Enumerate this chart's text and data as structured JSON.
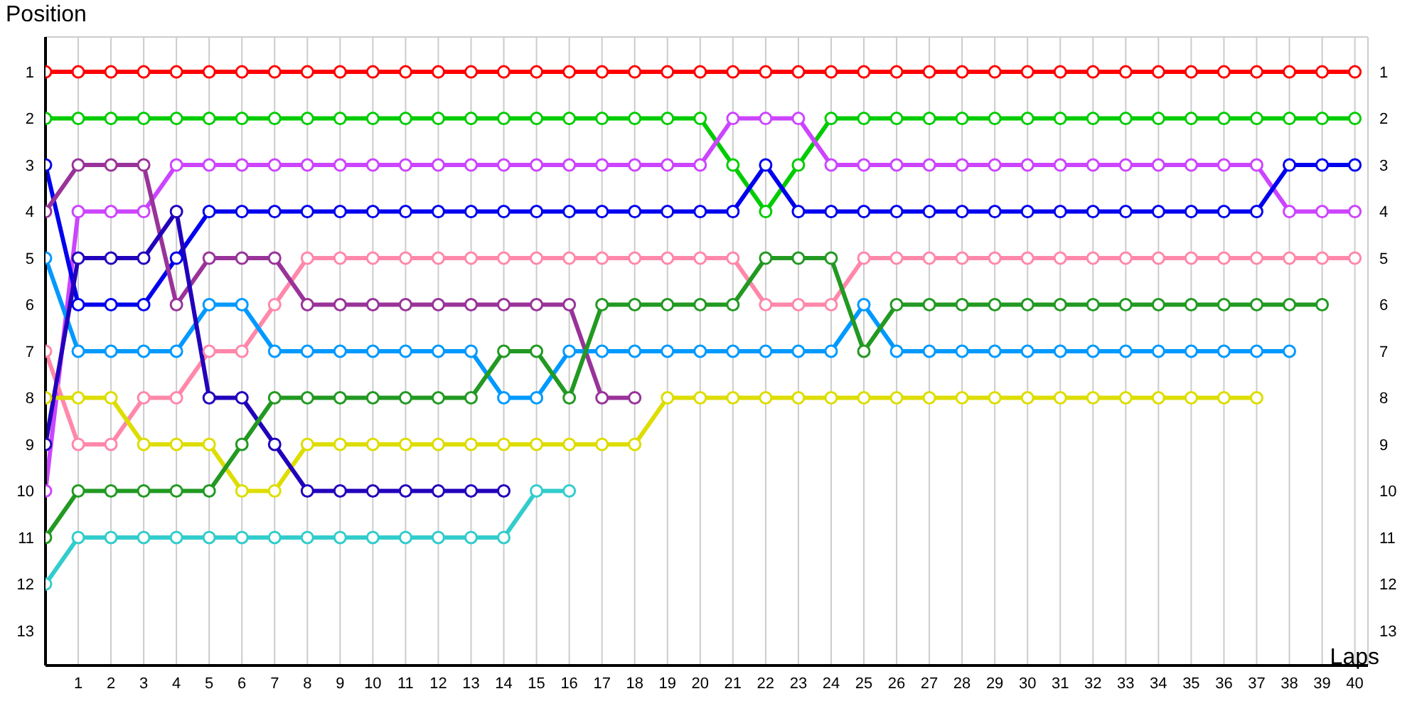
{
  "chart_data": {
    "type": "line",
    "xlabel": "Laps",
    "ylabel": "Position",
    "x": [
      0,
      1,
      2,
      3,
      4,
      5,
      6,
      7,
      8,
      9,
      10,
      11,
      12,
      13,
      14,
      15,
      16,
      17,
      18,
      19,
      20,
      21,
      22,
      23,
      24,
      25,
      26,
      27,
      28,
      29,
      30,
      31,
      32,
      33,
      34,
      35,
      36,
      37,
      38,
      39,
      40
    ],
    "xlim": [
      0,
      40.4
    ],
    "xticks": [
      1,
      2,
      3,
      4,
      5,
      6,
      7,
      8,
      9,
      10,
      11,
      12,
      13,
      14,
      15,
      16,
      17,
      18,
      19,
      20,
      21,
      22,
      23,
      24,
      25,
      26,
      27,
      28,
      29,
      30,
      31,
      32,
      33,
      34,
      35,
      36,
      37,
      38,
      39,
      40
    ],
    "ylim": [
      13.75,
      0.25
    ],
    "yticks": [
      1,
      2,
      3,
      4,
      5,
      6,
      7,
      8,
      9,
      10,
      11,
      12,
      13
    ],
    "y2lim": [
      13.75,
      0.25
    ],
    "y2ticks": [
      1,
      2,
      3,
      4,
      5,
      6,
      7,
      8,
      9,
      10,
      11,
      12,
      13
    ],
    "grid": true,
    "marker": "circle",
    "series": [
      {
        "color": "#ff0000",
        "values": [
          1,
          1,
          1,
          1,
          1,
          1,
          1,
          1,
          1,
          1,
          1,
          1,
          1,
          1,
          1,
          1,
          1,
          1,
          1,
          1,
          1,
          1,
          1,
          1,
          1,
          1,
          1,
          1,
          1,
          1,
          1,
          1,
          1,
          1,
          1,
          1,
          1,
          1,
          1,
          1,
          1
        ]
      },
      {
        "color": "#00cc00",
        "values": [
          2,
          2,
          2,
          2,
          2,
          2,
          2,
          2,
          2,
          2,
          2,
          2,
          2,
          2,
          2,
          2,
          2,
          2,
          2,
          2,
          2,
          3,
          4,
          3,
          2,
          2,
          2,
          2,
          2,
          2,
          2,
          2,
          2,
          2,
          2,
          2,
          2,
          2,
          2,
          2,
          2
        ]
      },
      {
        "color": "#cc44ff",
        "values": [
          10,
          4,
          4,
          4,
          3,
          3,
          3,
          3,
          3,
          3,
          3,
          3,
          3,
          3,
          3,
          3,
          3,
          3,
          3,
          3,
          3,
          2,
          2,
          2,
          3,
          3,
          3,
          3,
          3,
          3,
          3,
          3,
          3,
          3,
          3,
          3,
          3,
          3,
          4,
          4,
          4
        ]
      },
      {
        "color": "#0000ee",
        "values": [
          3,
          6,
          6,
          6,
          5,
          4,
          4,
          4,
          4,
          4,
          4,
          4,
          4,
          4,
          4,
          4,
          4,
          4,
          4,
          4,
          4,
          4,
          3,
          4,
          4,
          4,
          4,
          4,
          4,
          4,
          4,
          4,
          4,
          4,
          4,
          4,
          4,
          4,
          3,
          3,
          3
        ]
      },
      {
        "color": "#ff88aa",
        "values": [
          7,
          9,
          9,
          8,
          8,
          7,
          7,
          6,
          5,
          5,
          5,
          5,
          5,
          5,
          5,
          5,
          5,
          5,
          5,
          5,
          5,
          5,
          6,
          6,
          6,
          5,
          5,
          5,
          5,
          5,
          5,
          5,
          5,
          5,
          5,
          5,
          5,
          5,
          5,
          5,
          5
        ]
      },
      {
        "color": "#993399",
        "values": [
          4,
          3,
          3,
          3,
          6,
          5,
          5,
          5,
          6,
          6,
          6,
          6,
          6,
          6,
          6,
          6,
          6,
          8,
          8,
          null,
          null,
          null,
          null,
          null,
          null,
          null,
          null,
          null,
          null,
          null,
          null,
          null,
          null,
          null,
          null,
          null,
          null,
          null,
          null,
          null,
          null
        ]
      },
      {
        "color": "#0099ff",
        "values": [
          5,
          7,
          7,
          7,
          7,
          6,
          6,
          7,
          7,
          7,
          7,
          7,
          7,
          7,
          8,
          8,
          7,
          7,
          7,
          7,
          7,
          7,
          7,
          7,
          7,
          6,
          7,
          7,
          7,
          7,
          7,
          7,
          7,
          7,
          7,
          7,
          7,
          7,
          7,
          null,
          null
        ]
      },
      {
        "color": "#dddd00",
        "values": [
          8,
          8,
          8,
          9,
          9,
          9,
          10,
          10,
          9,
          9,
          9,
          9,
          9,
          9,
          9,
          9,
          9,
          9,
          9,
          8,
          8,
          8,
          8,
          8,
          8,
          8,
          8,
          8,
          8,
          8,
          8,
          8,
          8,
          8,
          8,
          8,
          8,
          8,
          null,
          null,
          null
        ]
      },
      {
        "color": "#2200bb",
        "values": [
          9,
          5,
          5,
          5,
          4,
          8,
          8,
          9,
          10,
          10,
          10,
          10,
          10,
          10,
          10,
          null,
          null,
          null,
          null,
          null,
          null,
          null,
          null,
          null,
          null,
          null,
          null,
          null,
          null,
          null,
          null,
          null,
          null,
          null,
          null,
          null,
          null,
          null,
          null,
          null,
          null
        ]
      },
      {
        "color": "#229922",
        "values": [
          11,
          10,
          10,
          10,
          10,
          10,
          9,
          8,
          8,
          8,
          8,
          8,
          8,
          8,
          7,
          7,
          8,
          6,
          6,
          6,
          6,
          6,
          5,
          5,
          5,
          7,
          6,
          6,
          6,
          6,
          6,
          6,
          6,
          6,
          6,
          6,
          6,
          6,
          6,
          6,
          null
        ]
      },
      {
        "color": "#33cccc",
        "values": [
          12,
          11,
          11,
          11,
          11,
          11,
          11,
          11,
          11,
          11,
          11,
          11,
          11,
          11,
          11,
          10,
          10,
          null,
          null,
          null,
          null,
          null,
          null,
          null,
          null,
          null,
          null,
          null,
          null,
          null,
          null,
          null,
          null,
          null,
          null,
          null,
          null,
          null,
          null,
          null,
          null
        ]
      }
    ]
  }
}
